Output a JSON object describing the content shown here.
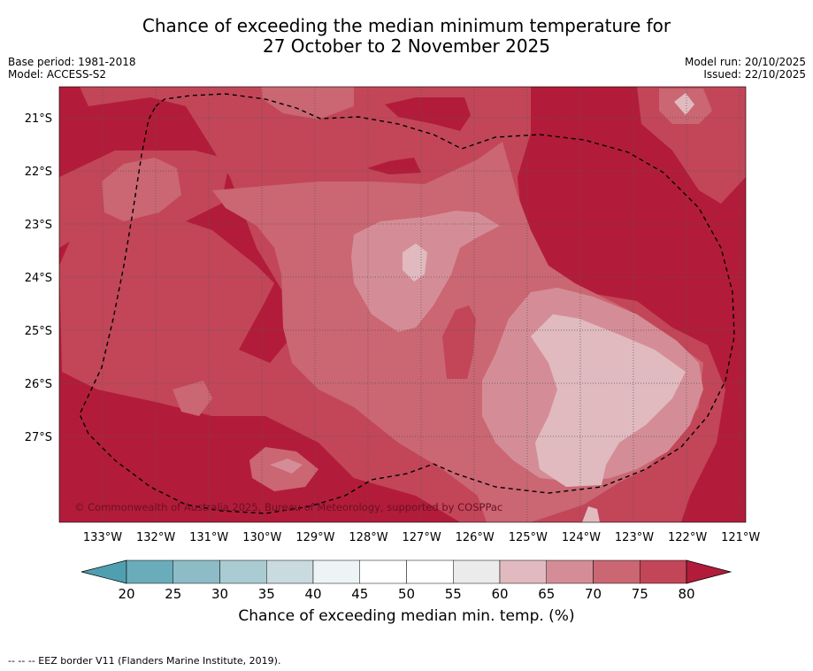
{
  "title": {
    "line1": "Chance of exceeding the median minimum temperature for",
    "line2": "27 October to 2 November 2025"
  },
  "meta": {
    "base_period": "Base period: 1981-2018",
    "model": "Model: ACCESS-S2",
    "model_run": "Model run: 20/10/2025",
    "issued": "Issued: 22/10/2025"
  },
  "map": {
    "lat_labels": [
      "21°S",
      "22°S",
      "23°S",
      "24°S",
      "25°S",
      "26°S",
      "27°S"
    ],
    "lon_labels": [
      "133°W",
      "132°W",
      "131°W",
      "130°W",
      "129°W",
      "128°W",
      "127°W",
      "126°W",
      "125°W",
      "124°W",
      "123°W",
      "122°W",
      "121°W"
    ],
    "copyright": "© Commonwealth of Australia 2025, Bureau of Meteorology, supported by COSPPac",
    "colors": {
      "c80": "#b21c3a",
      "c75": "#c24658",
      "c70": "#cb6673",
      "c65": "#d48d96",
      "c60": "#e0babf",
      "border": "#000000"
    }
  },
  "colorbar": {
    "ticks": [
      "20",
      "25",
      "30",
      "35",
      "40",
      "45",
      "50",
      "55",
      "60",
      "65",
      "70",
      "75",
      "80"
    ],
    "colors": [
      "#6aacba",
      "#8dbcc6",
      "#a9cbd1",
      "#cadbdf",
      "#eef3f5",
      "#ffffff",
      "#ffffff",
      "#ebebeb",
      "#e0babf",
      "#d48d96",
      "#cb6673",
      "#c24658"
    ],
    "under_color": "#4f9fb0",
    "over_color": "#b21c3a",
    "label": "Chance of exceeding median min. temp. (%)"
  },
  "footnote": "--  --  -- EEZ border V11 (Flanders Marine Institute, 2019)."
}
